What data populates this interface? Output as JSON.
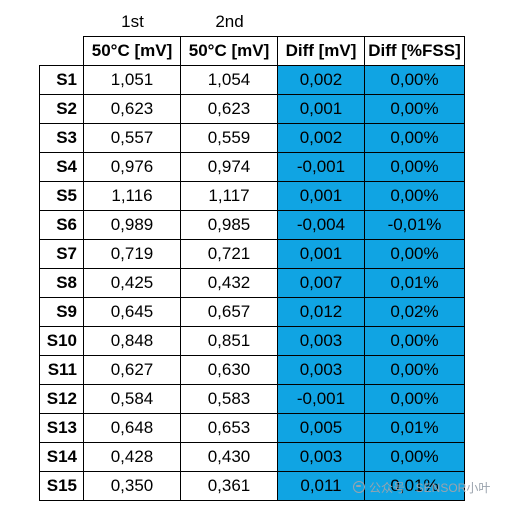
{
  "group_headers": [
    "1st",
    "2nd"
  ],
  "column_headers": [
    "",
    "50°C [mV]",
    "50°C [mV]",
    "Diff [mV]",
    "Diff [%FSS]"
  ],
  "rows": [
    {
      "sensor": "S1",
      "first": "1,051",
      "second": "1,054",
      "diff_mv": "0,002",
      "diff_fss": "0,00%"
    },
    {
      "sensor": "S2",
      "first": "0,623",
      "second": "0,623",
      "diff_mv": "0,001",
      "diff_fss": "0,00%"
    },
    {
      "sensor": "S3",
      "first": "0,557",
      "second": "0,559",
      "diff_mv": "0,002",
      "diff_fss": "0,00%"
    },
    {
      "sensor": "S4",
      "first": "0,976",
      "second": "0,974",
      "diff_mv": "-0,001",
      "diff_fss": "0,00%"
    },
    {
      "sensor": "S5",
      "first": "1,116",
      "second": "1,117",
      "diff_mv": "0,001",
      "diff_fss": "0,00%"
    },
    {
      "sensor": "S6",
      "first": "0,989",
      "second": "0,985",
      "diff_mv": "-0,004",
      "diff_fss": "-0,01%"
    },
    {
      "sensor": "S7",
      "first": "0,719",
      "second": "0,721",
      "diff_mv": "0,001",
      "diff_fss": "0,00%"
    },
    {
      "sensor": "S8",
      "first": "0,425",
      "second": "0,432",
      "diff_mv": "0,007",
      "diff_fss": "0,01%"
    },
    {
      "sensor": "S9",
      "first": "0,645",
      "second": "0,657",
      "diff_mv": "0,012",
      "diff_fss": "0,02%"
    },
    {
      "sensor": "S10",
      "first": "0,848",
      "second": "0,851",
      "diff_mv": "0,003",
      "diff_fss": "0,00%"
    },
    {
      "sensor": "S11",
      "first": "0,627",
      "second": "0,630",
      "diff_mv": "0,003",
      "diff_fss": "0,00%"
    },
    {
      "sensor": "S12",
      "first": "0,584",
      "second": "0,583",
      "diff_mv": "-0,001",
      "diff_fss": "0,00%"
    },
    {
      "sensor": "S13",
      "first": "0,648",
      "second": "0,653",
      "diff_mv": "0,005",
      "diff_fss": "0,01%"
    },
    {
      "sensor": "S14",
      "first": "0,428",
      "second": "0,430",
      "diff_mv": "0,003",
      "diff_fss": "0,00%"
    },
    {
      "sensor": "S15",
      "first": "0,350",
      "second": "0,361",
      "diff_mv": "0,011",
      "diff_fss": "0,01%"
    }
  ],
  "diff_fill_color": "#10a4e3",
  "watermark": {
    "text": "公众号 · SENSOR小叶",
    "icon": "chat-bubble-icon"
  }
}
